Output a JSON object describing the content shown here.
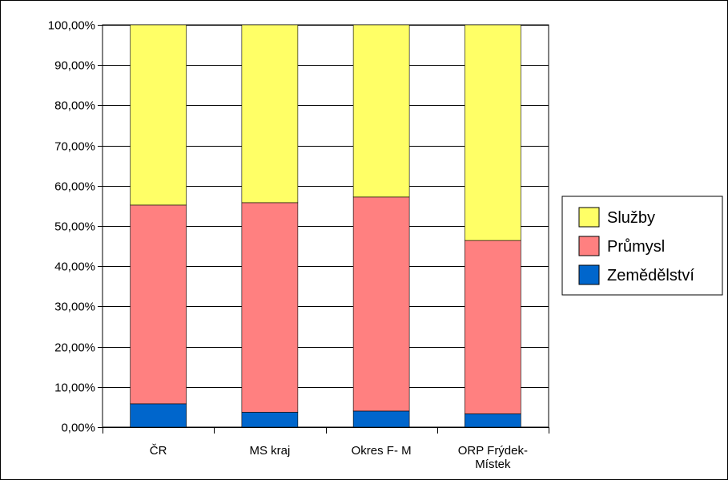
{
  "chart_data": {
    "type": "bar",
    "stacked": true,
    "categories": [
      "ČR",
      "MS kraj",
      "Okres F- M",
      "ORP Frýdek-Místek"
    ],
    "category_label_lines": [
      [
        "ČR"
      ],
      [
        "MS kraj"
      ],
      [
        "Okres F- M"
      ],
      [
        "ORP Frýdek-",
        "Místek"
      ]
    ],
    "series": [
      {
        "name": "Zemědělství",
        "color": "#0066cc",
        "values": [
          5.8,
          3.7,
          4.0,
          3.3
        ]
      },
      {
        "name": "Průmysl",
        "color": "#ff8080",
        "values": [
          49.4,
          52.1,
          53.2,
          43.1
        ]
      },
      {
        "name": "Služby",
        "color": "#ffff66",
        "values": [
          44.8,
          44.2,
          42.8,
          53.6
        ]
      }
    ],
    "ylim": [
      0,
      100
    ],
    "yticks": [
      "0,00%",
      "10,00%",
      "20,00%",
      "30,00%",
      "40,00%",
      "50,00%",
      "60,00%",
      "70,00%",
      "80,00%",
      "90,00%",
      "100,00%"
    ],
    "legend_order": [
      "Služby",
      "Průmysl",
      "Zemědělství"
    ],
    "legend_position": "right",
    "grid": true,
    "title": "",
    "xlabel": "",
    "ylabel": ""
  }
}
